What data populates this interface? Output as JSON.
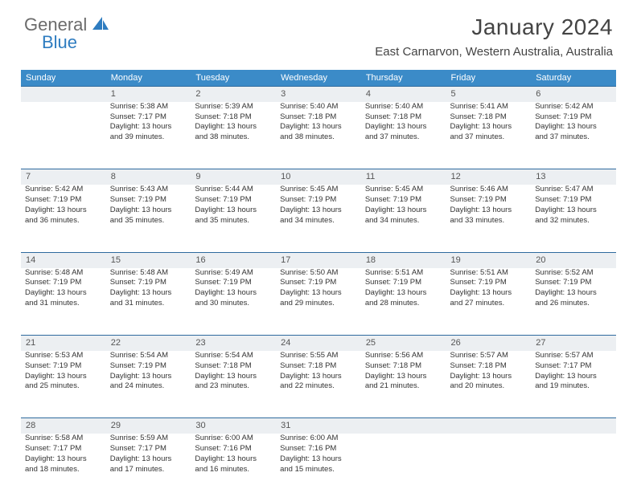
{
  "logo": {
    "text_gray": "General",
    "text_blue": "Blue"
  },
  "title": "January 2024",
  "location": "East Carnarvon, Western Australia, Australia",
  "colors": {
    "header_bg": "#3b8bc8",
    "header_text": "#ffffff",
    "daynum_bg": "#eceff2",
    "row_border": "#2e6a9e",
    "text": "#333333",
    "logo_gray": "#6b6b6b",
    "logo_blue": "#2e7cc0"
  },
  "typography": {
    "title_fontsize": 28,
    "location_fontsize": 15,
    "dayheader_fontsize": 11,
    "cell_fontsize": 9.5
  },
  "day_headers": [
    "Sunday",
    "Monday",
    "Tuesday",
    "Wednesday",
    "Thursday",
    "Friday",
    "Saturday"
  ],
  "weeks": [
    {
      "nums": [
        "",
        "1",
        "2",
        "3",
        "4",
        "5",
        "6"
      ],
      "cells": [
        null,
        {
          "sunrise": "Sunrise: 5:38 AM",
          "sunset": "Sunset: 7:17 PM",
          "day1": "Daylight: 13 hours",
          "day2": "and 39 minutes."
        },
        {
          "sunrise": "Sunrise: 5:39 AM",
          "sunset": "Sunset: 7:18 PM",
          "day1": "Daylight: 13 hours",
          "day2": "and 38 minutes."
        },
        {
          "sunrise": "Sunrise: 5:40 AM",
          "sunset": "Sunset: 7:18 PM",
          "day1": "Daylight: 13 hours",
          "day2": "and 38 minutes."
        },
        {
          "sunrise": "Sunrise: 5:40 AM",
          "sunset": "Sunset: 7:18 PM",
          "day1": "Daylight: 13 hours",
          "day2": "and 37 minutes."
        },
        {
          "sunrise": "Sunrise: 5:41 AM",
          "sunset": "Sunset: 7:18 PM",
          "day1": "Daylight: 13 hours",
          "day2": "and 37 minutes."
        },
        {
          "sunrise": "Sunrise: 5:42 AM",
          "sunset": "Sunset: 7:19 PM",
          "day1": "Daylight: 13 hours",
          "day2": "and 37 minutes."
        }
      ]
    },
    {
      "nums": [
        "7",
        "8",
        "9",
        "10",
        "11",
        "12",
        "13"
      ],
      "cells": [
        {
          "sunrise": "Sunrise: 5:42 AM",
          "sunset": "Sunset: 7:19 PM",
          "day1": "Daylight: 13 hours",
          "day2": "and 36 minutes."
        },
        {
          "sunrise": "Sunrise: 5:43 AM",
          "sunset": "Sunset: 7:19 PM",
          "day1": "Daylight: 13 hours",
          "day2": "and 35 minutes."
        },
        {
          "sunrise": "Sunrise: 5:44 AM",
          "sunset": "Sunset: 7:19 PM",
          "day1": "Daylight: 13 hours",
          "day2": "and 35 minutes."
        },
        {
          "sunrise": "Sunrise: 5:45 AM",
          "sunset": "Sunset: 7:19 PM",
          "day1": "Daylight: 13 hours",
          "day2": "and 34 minutes."
        },
        {
          "sunrise": "Sunrise: 5:45 AM",
          "sunset": "Sunset: 7:19 PM",
          "day1": "Daylight: 13 hours",
          "day2": "and 34 minutes."
        },
        {
          "sunrise": "Sunrise: 5:46 AM",
          "sunset": "Sunset: 7:19 PM",
          "day1": "Daylight: 13 hours",
          "day2": "and 33 minutes."
        },
        {
          "sunrise": "Sunrise: 5:47 AM",
          "sunset": "Sunset: 7:19 PM",
          "day1": "Daylight: 13 hours",
          "day2": "and 32 minutes."
        }
      ]
    },
    {
      "nums": [
        "14",
        "15",
        "16",
        "17",
        "18",
        "19",
        "20"
      ],
      "cells": [
        {
          "sunrise": "Sunrise: 5:48 AM",
          "sunset": "Sunset: 7:19 PM",
          "day1": "Daylight: 13 hours",
          "day2": "and 31 minutes."
        },
        {
          "sunrise": "Sunrise: 5:48 AM",
          "sunset": "Sunset: 7:19 PM",
          "day1": "Daylight: 13 hours",
          "day2": "and 31 minutes."
        },
        {
          "sunrise": "Sunrise: 5:49 AM",
          "sunset": "Sunset: 7:19 PM",
          "day1": "Daylight: 13 hours",
          "day2": "and 30 minutes."
        },
        {
          "sunrise": "Sunrise: 5:50 AM",
          "sunset": "Sunset: 7:19 PM",
          "day1": "Daylight: 13 hours",
          "day2": "and 29 minutes."
        },
        {
          "sunrise": "Sunrise: 5:51 AM",
          "sunset": "Sunset: 7:19 PM",
          "day1": "Daylight: 13 hours",
          "day2": "and 28 minutes."
        },
        {
          "sunrise": "Sunrise: 5:51 AM",
          "sunset": "Sunset: 7:19 PM",
          "day1": "Daylight: 13 hours",
          "day2": "and 27 minutes."
        },
        {
          "sunrise": "Sunrise: 5:52 AM",
          "sunset": "Sunset: 7:19 PM",
          "day1": "Daylight: 13 hours",
          "day2": "and 26 minutes."
        }
      ]
    },
    {
      "nums": [
        "21",
        "22",
        "23",
        "24",
        "25",
        "26",
        "27"
      ],
      "cells": [
        {
          "sunrise": "Sunrise: 5:53 AM",
          "sunset": "Sunset: 7:19 PM",
          "day1": "Daylight: 13 hours",
          "day2": "and 25 minutes."
        },
        {
          "sunrise": "Sunrise: 5:54 AM",
          "sunset": "Sunset: 7:19 PM",
          "day1": "Daylight: 13 hours",
          "day2": "and 24 minutes."
        },
        {
          "sunrise": "Sunrise: 5:54 AM",
          "sunset": "Sunset: 7:18 PM",
          "day1": "Daylight: 13 hours",
          "day2": "and 23 minutes."
        },
        {
          "sunrise": "Sunrise: 5:55 AM",
          "sunset": "Sunset: 7:18 PM",
          "day1": "Daylight: 13 hours",
          "day2": "and 22 minutes."
        },
        {
          "sunrise": "Sunrise: 5:56 AM",
          "sunset": "Sunset: 7:18 PM",
          "day1": "Daylight: 13 hours",
          "day2": "and 21 minutes."
        },
        {
          "sunrise": "Sunrise: 5:57 AM",
          "sunset": "Sunset: 7:18 PM",
          "day1": "Daylight: 13 hours",
          "day2": "and 20 minutes."
        },
        {
          "sunrise": "Sunrise: 5:57 AM",
          "sunset": "Sunset: 7:17 PM",
          "day1": "Daylight: 13 hours",
          "day2": "and 19 minutes."
        }
      ]
    },
    {
      "nums": [
        "28",
        "29",
        "30",
        "31",
        "",
        "",
        ""
      ],
      "cells": [
        {
          "sunrise": "Sunrise: 5:58 AM",
          "sunset": "Sunset: 7:17 PM",
          "day1": "Daylight: 13 hours",
          "day2": "and 18 minutes."
        },
        {
          "sunrise": "Sunrise: 5:59 AM",
          "sunset": "Sunset: 7:17 PM",
          "day1": "Daylight: 13 hours",
          "day2": "and 17 minutes."
        },
        {
          "sunrise": "Sunrise: 6:00 AM",
          "sunset": "Sunset: 7:16 PM",
          "day1": "Daylight: 13 hours",
          "day2": "and 16 minutes."
        },
        {
          "sunrise": "Sunrise: 6:00 AM",
          "sunset": "Sunset: 7:16 PM",
          "day1": "Daylight: 13 hours",
          "day2": "and 15 minutes."
        },
        null,
        null,
        null
      ]
    }
  ]
}
